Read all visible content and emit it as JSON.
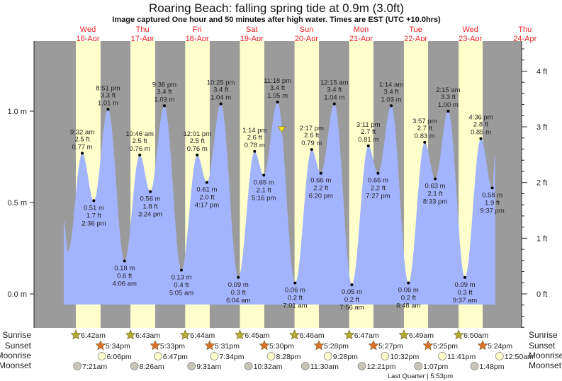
{
  "header": {
    "title": "Roaring Beach: falling  spring tide at 0.9m (3.0ft)",
    "subtitle": "Image captured One hour and 50 minutes after high water. Times are EST (UTC +10.0hrs)"
  },
  "days": [
    {
      "name": "Wed",
      "date": "16-Apr"
    },
    {
      "name": "Thu",
      "date": "17-Apr"
    },
    {
      "name": "Fri",
      "date": "18-Apr"
    },
    {
      "name": "Sat",
      "date": "19-Apr"
    },
    {
      "name": "Sun",
      "date": "20-Apr"
    },
    {
      "name": "Mon",
      "date": "21-Apr"
    },
    {
      "name": "Tue",
      "date": "22-Apr"
    },
    {
      "name": "Wed",
      "date": "23-Apr"
    },
    {
      "name": "Thu",
      "date": "24-Apr"
    }
  ],
  "colors": {
    "night": "#9b9b9b",
    "day": "#ffffcc",
    "water": "#a3b4ff",
    "day_label": "#ee2222",
    "sunrise": "#b5ad32",
    "sunset": "#d9702a",
    "moonrise": "#ffffcc",
    "moonset": "#c8c5b8",
    "marker": "#f0e020"
  },
  "row_labels": {
    "sunrise": "Sunrise",
    "sunset": "Sunset",
    "moonrise": "Moonrise",
    "moonset": "Moonset"
  },
  "moon_phase": "Last Quarter | 5:53pm",
  "chart_data": {
    "type": "area",
    "title": "Roaring Beach: falling  spring tide at 0.9m (3.0ft)",
    "ylabel_left": "m",
    "ylabel_right": "ft",
    "ylim_m": [
      -0.06,
      1.5
    ],
    "yticks_m": [
      "0.0 m",
      "0.5 m",
      "1.0 m"
    ],
    "yticks_m_values": [
      0.0,
      0.5,
      1.0
    ],
    "yticks_ft": [
      "0 ft",
      "1 ft",
      "2 ft",
      "3 ft",
      "4 ft"
    ],
    "yticks_ft_values": [
      0,
      1,
      2,
      3,
      4
    ],
    "current": {
      "day": 4,
      "time": "1:08am",
      "m": 0.9
    },
    "curve_start": {
      "day": 0,
      "time": "1:24am",
      "m": 0.4
    },
    "curve_first_low": {
      "day": 0,
      "time": "3:12am",
      "m": 0.23
    },
    "curve_end": {
      "day": 7,
      "time": "10:54pm",
      "m": 0.76
    },
    "extremes": [
      {
        "day": 0,
        "time": "9:32 am",
        "m": "0.77",
        "ft": "2.5",
        "type": "high"
      },
      {
        "day": 0,
        "time": "2:36 pm",
        "m": "0.51",
        "ft": "1.7",
        "type": "low"
      },
      {
        "day": 0,
        "time": "8:51 pm",
        "m": "1.01",
        "ft": "3.3",
        "type": "high"
      },
      {
        "day": 1,
        "time": "4:06 am",
        "m": "0.18",
        "ft": "0.6",
        "type": "low"
      },
      {
        "day": 1,
        "time": "10:46 am",
        "m": "0.76",
        "ft": "2.5",
        "type": "high"
      },
      {
        "day": 1,
        "time": "3:24 pm",
        "m": "0.56",
        "ft": "1.8",
        "type": "low"
      },
      {
        "day": 1,
        "time": "9:36 pm",
        "m": "1.03",
        "ft": "3.4",
        "type": "high"
      },
      {
        "day": 2,
        "time": "5:05 am",
        "m": "0.13",
        "ft": "0.4",
        "type": "low"
      },
      {
        "day": 2,
        "time": "12:01 pm",
        "m": "0.76",
        "ft": "2.5",
        "type": "high"
      },
      {
        "day": 2,
        "time": "4:17 pm",
        "m": "0.61",
        "ft": "2.0",
        "type": "low"
      },
      {
        "day": 2,
        "time": "10:25 pm",
        "m": "1.04",
        "ft": "3.4",
        "type": "high"
      },
      {
        "day": 3,
        "time": "6:04 am",
        "m": "0.09",
        "ft": "0.3",
        "type": "low"
      },
      {
        "day": 3,
        "time": "1:14 pm",
        "m": "0.78",
        "ft": "2.6",
        "type": "high"
      },
      {
        "day": 3,
        "time": "5:16 pm",
        "m": "0.65",
        "ft": "2.1",
        "type": "low"
      },
      {
        "day": 3,
        "time": "11:18 pm",
        "m": "1.05",
        "ft": "3.4",
        "type": "high"
      },
      {
        "day": 4,
        "time": "7:01 am",
        "m": "0.06",
        "ft": "0.2",
        "type": "low"
      },
      {
        "day": 4,
        "time": "2:17 pm",
        "m": "0.79",
        "ft": "2.6",
        "type": "high"
      },
      {
        "day": 4,
        "time": "6:20 pm",
        "m": "0.66",
        "ft": "2.2",
        "type": "low"
      },
      {
        "day": 5,
        "time": "12:15 am",
        "m": "1.04",
        "ft": "3.4",
        "type": "high"
      },
      {
        "day": 5,
        "time": "7:56 am",
        "m": "0.05",
        "ft": "0.2",
        "type": "low"
      },
      {
        "day": 5,
        "time": "3:11 pm",
        "m": "0.81",
        "ft": "2.7",
        "type": "high"
      },
      {
        "day": 5,
        "time": "7:27 pm",
        "m": "0.66",
        "ft": "2.2",
        "type": "low"
      },
      {
        "day": 6,
        "time": "1:14 am",
        "m": "1.03",
        "ft": "3.4",
        "type": "high"
      },
      {
        "day": 6,
        "time": "8:48 am",
        "m": "0.06",
        "ft": "0.2",
        "type": "low"
      },
      {
        "day": 6,
        "time": "3:57 pm",
        "m": "0.83",
        "ft": "2.7",
        "type": "high"
      },
      {
        "day": 6,
        "time": "8:33 pm",
        "m": "0.63",
        "ft": "2.1",
        "type": "low"
      },
      {
        "day": 7,
        "time": "2:15 am",
        "m": "1.00",
        "ft": "3.3",
        "type": "high"
      },
      {
        "day": 7,
        "time": "9:37 am",
        "m": "0.09",
        "ft": "0.3",
        "type": "low"
      },
      {
        "day": 7,
        "time": "4:36 pm",
        "m": "0.85",
        "ft": "2.8",
        "type": "high"
      },
      {
        "day": 7,
        "time": "9:37 pm",
        "m": "0.58",
        "ft": "1.9",
        "type": "low"
      }
    ],
    "sunrise": [
      {
        "day": 0,
        "time": "6:42am"
      },
      {
        "day": 1,
        "time": "6:43am"
      },
      {
        "day": 2,
        "time": "6:44am"
      },
      {
        "day": 3,
        "time": "6:45am"
      },
      {
        "day": 4,
        "time": "6:46am"
      },
      {
        "day": 5,
        "time": "6:47am"
      },
      {
        "day": 6,
        "time": "6:49am"
      },
      {
        "day": 7,
        "time": "6:50am"
      }
    ],
    "sunset": [
      {
        "day": 0,
        "time": "5:34pm"
      },
      {
        "day": 1,
        "time": "5:33pm"
      },
      {
        "day": 2,
        "time": "5:31pm"
      },
      {
        "day": 3,
        "time": "5:30pm"
      },
      {
        "day": 4,
        "time": "5:28pm"
      },
      {
        "day": 5,
        "time": "5:27pm"
      },
      {
        "day": 6,
        "time": "5:25pm"
      },
      {
        "day": 7,
        "time": "5:24pm"
      }
    ],
    "moonrise": [
      {
        "day": 0,
        "time": "6:06pm"
      },
      {
        "day": 1,
        "time": "6:47pm"
      },
      {
        "day": 2,
        "time": "7:34pm"
      },
      {
        "day": 3,
        "time": "8:28pm"
      },
      {
        "day": 4,
        "time": "9:28pm"
      },
      {
        "day": 5,
        "time": "10:32pm"
      },
      {
        "day": 6,
        "time": "11:41pm"
      },
      {
        "day": 8,
        "time": "12:50am"
      }
    ],
    "moonset": [
      {
        "day": 0,
        "time": "7:21am"
      },
      {
        "day": 1,
        "time": "8:26am"
      },
      {
        "day": 2,
        "time": "9:31am"
      },
      {
        "day": 3,
        "time": "10:32am"
      },
      {
        "day": 4,
        "time": "11:30am"
      },
      {
        "day": 5,
        "time": "12:21pm"
      },
      {
        "day": 6,
        "time": "1:07pm"
      },
      {
        "day": 7,
        "time": "1:48pm"
      }
    ]
  }
}
